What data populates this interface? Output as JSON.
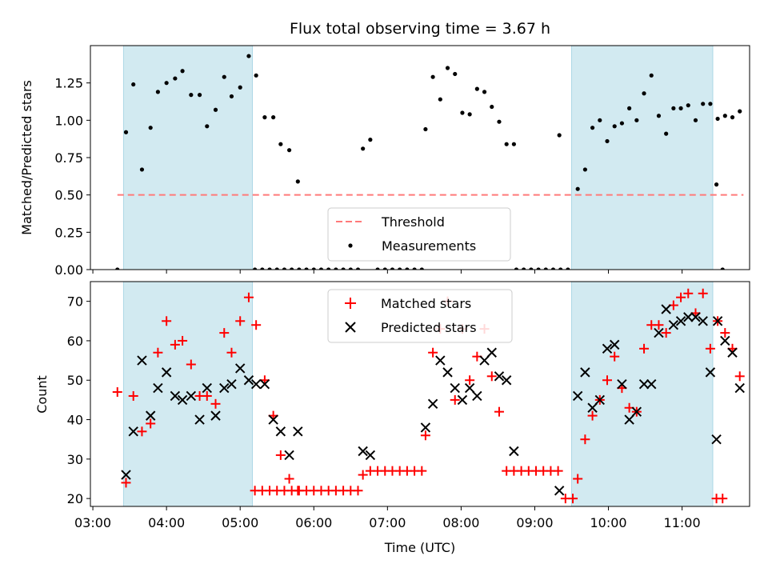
{
  "chart_data": [
    {
      "type": "scatter",
      "panel": "top",
      "title": "Flux total observing time = 3.67 h",
      "xlabel": "",
      "ylabel": "Matched/Predicted stars",
      "ylim": [
        0,
        1.5
      ],
      "yticks": [
        "0.00",
        "0.25",
        "0.50",
        "0.75",
        "1.00",
        "1.25"
      ],
      "threshold": {
        "name": "Threshold",
        "value": 0.5,
        "color": "#ff7a7a",
        "style": "dashed"
      },
      "shaded_intervals": [
        [
          "03:25",
          "05:10"
        ],
        [
          "09:30",
          "11:25"
        ]
      ],
      "shade_color": "#add8e6",
      "legend": {
        "placement": "lower-center",
        "entries": [
          "Threshold",
          "Measurements"
        ]
      },
      "series": [
        {
          "name": "Measurements",
          "marker": "dot",
          "color": "#000000",
          "points": [
            [
              "03:20",
              0
            ],
            [
              "03:27",
              0.92
            ],
            [
              "03:33",
              1.24
            ],
            [
              "03:40",
              0.67
            ],
            [
              "03:47",
              0.95
            ],
            [
              "03:53",
              1.19
            ],
            [
              "04:00",
              1.25
            ],
            [
              "04:07",
              1.28
            ],
            [
              "04:13",
              1.33
            ],
            [
              "04:20",
              1.17
            ],
            [
              "04:27",
              1.17
            ],
            [
              "04:33",
              0.96
            ],
            [
              "04:40",
              1.07
            ],
            [
              "04:47",
              1.29
            ],
            [
              "04:53",
              1.16
            ],
            [
              "05:00",
              1.22
            ],
            [
              "05:07",
              1.43
            ],
            [
              "05:13",
              1.3
            ],
            [
              "05:20",
              1.02
            ],
            [
              "05:27",
              1.02
            ],
            [
              "05:33",
              0.84
            ],
            [
              "05:40",
              0.8
            ],
            [
              "05:47",
              0.59
            ],
            [
              "05:12",
              0
            ],
            [
              "05:18",
              0
            ],
            [
              "05:24",
              0
            ],
            [
              "05:30",
              0
            ],
            [
              "05:36",
              0
            ],
            [
              "05:42",
              0
            ],
            [
              "05:48",
              0
            ],
            [
              "05:54",
              0
            ],
            [
              "06:00",
              0
            ],
            [
              "06:06",
              0
            ],
            [
              "06:12",
              0
            ],
            [
              "06:18",
              0
            ],
            [
              "06:24",
              0
            ],
            [
              "06:30",
              0
            ],
            [
              "06:36",
              0
            ],
            [
              "06:40",
              0.81
            ],
            [
              "06:46",
              0.87
            ],
            [
              "06:52",
              0
            ],
            [
              "06:58",
              0
            ],
            [
              "07:04",
              0
            ],
            [
              "07:10",
              0
            ],
            [
              "07:16",
              0
            ],
            [
              "07:22",
              0
            ],
            [
              "07:28",
              0
            ],
            [
              "07:31",
              0.94
            ],
            [
              "07:37",
              1.29
            ],
            [
              "07:43",
              1.14
            ],
            [
              "07:49",
              1.35
            ],
            [
              "07:55",
              1.31
            ],
            [
              "08:01",
              1.05
            ],
            [
              "08:07",
              1.04
            ],
            [
              "08:13",
              1.21
            ],
            [
              "08:19",
              1.19
            ],
            [
              "08:25",
              1.09
            ],
            [
              "08:31",
              0.99
            ],
            [
              "08:37",
              0.84
            ],
            [
              "08:43",
              0.84
            ],
            [
              "08:45",
              0
            ],
            [
              "08:51",
              0
            ],
            [
              "08:57",
              0
            ],
            [
              "09:03",
              0
            ],
            [
              "09:09",
              0
            ],
            [
              "09:15",
              0
            ],
            [
              "09:21",
              0
            ],
            [
              "09:20",
              0.9
            ],
            [
              "09:27",
              0
            ],
            [
              "09:35",
              0.54
            ],
            [
              "09:41",
              0.67
            ],
            [
              "09:47",
              0.95
            ],
            [
              "09:53",
              1.0
            ],
            [
              "09:59",
              0.86
            ],
            [
              "10:05",
              0.96
            ],
            [
              "10:11",
              0.98
            ],
            [
              "10:17",
              1.08
            ],
            [
              "10:23",
              1.0
            ],
            [
              "10:29",
              1.18
            ],
            [
              "10:35",
              1.3
            ],
            [
              "10:41",
              1.03
            ],
            [
              "10:47",
              0.91
            ],
            [
              "10:53",
              1.08
            ],
            [
              "10:59",
              1.08
            ],
            [
              "11:05",
              1.1
            ],
            [
              "11:11",
              1.0
            ],
            [
              "11:17",
              1.11
            ],
            [
              "11:23",
              1.11
            ],
            [
              "11:29",
              1.01
            ],
            [
              "11:35",
              1.03
            ],
            [
              "11:41",
              1.02
            ],
            [
              "11:47",
              1.06
            ],
            [
              "11:28",
              0.57
            ],
            [
              "11:33",
              0
            ]
          ]
        }
      ]
    },
    {
      "type": "scatter",
      "panel": "bottom",
      "title": "",
      "xlabel": "Time (UTC)",
      "ylabel": "Count",
      "xlim": [
        "02:58",
        "11:55"
      ],
      "ylim": [
        18,
        75
      ],
      "xticks": [
        "03:00",
        "04:00",
        "05:00",
        "06:00",
        "07:00",
        "08:00",
        "09:00",
        "10:00",
        "11:00"
      ],
      "yticks": [
        "20",
        "30",
        "40",
        "50",
        "60",
        "70"
      ],
      "shaded_intervals": [
        [
          "03:25",
          "05:10"
        ],
        [
          "09:30",
          "11:25"
        ]
      ],
      "legend": {
        "placement": "top-center",
        "entries": [
          "Matched stars",
          "Predicted stars"
        ]
      },
      "series": [
        {
          "name": "Matched stars",
          "marker": "plus",
          "color": "#ff0000",
          "points": [
            [
              "03:20",
              47
            ],
            [
              "03:27",
              24
            ],
            [
              "03:33",
              46
            ],
            [
              "03:40",
              37
            ],
            [
              "03:47",
              39
            ],
            [
              "03:53",
              57
            ],
            [
              "04:00",
              65
            ],
            [
              "04:07",
              59
            ],
            [
              "04:13",
              60
            ],
            [
              "04:20",
              54
            ],
            [
              "04:27",
              46
            ],
            [
              "04:33",
              46
            ],
            [
              "04:40",
              44
            ],
            [
              "04:47",
              62
            ],
            [
              "04:53",
              57
            ],
            [
              "05:00",
              65
            ],
            [
              "05:07",
              71
            ],
            [
              "05:13",
              64
            ],
            [
              "05:20",
              50
            ],
            [
              "05:27",
              41
            ],
            [
              "05:33",
              31
            ],
            [
              "05:40",
              25
            ],
            [
              "05:47",
              22
            ],
            [
              "05:12",
              22
            ],
            [
              "05:18",
              22
            ],
            [
              "05:24",
              22
            ],
            [
              "05:30",
              22
            ],
            [
              "05:36",
              22
            ],
            [
              "05:42",
              22
            ],
            [
              "05:48",
              22
            ],
            [
              "05:54",
              22
            ],
            [
              "06:00",
              22
            ],
            [
              "06:06",
              22
            ],
            [
              "06:12",
              22
            ],
            [
              "06:18",
              22
            ],
            [
              "06:24",
              22
            ],
            [
              "06:30",
              22
            ],
            [
              "06:36",
              22
            ],
            [
              "06:40",
              26
            ],
            [
              "06:46",
              27
            ],
            [
              "06:52",
              27
            ],
            [
              "06:58",
              27
            ],
            [
              "07:04",
              27
            ],
            [
              "07:10",
              27
            ],
            [
              "07:16",
              27
            ],
            [
              "07:22",
              27
            ],
            [
              "07:28",
              27
            ],
            [
              "07:31",
              36
            ],
            [
              "07:37",
              57
            ],
            [
              "07:43",
              63
            ],
            [
              "07:49",
              70
            ],
            [
              "07:55",
              45
            ],
            [
              "08:01",
              63
            ],
            [
              "08:07",
              50
            ],
            [
              "08:13",
              56
            ],
            [
              "08:19",
              63
            ],
            [
              "08:25",
              51
            ],
            [
              "08:31",
              42
            ],
            [
              "08:37",
              27
            ],
            [
              "08:43",
              27
            ],
            [
              "08:49",
              27
            ],
            [
              "08:55",
              27
            ],
            [
              "09:01",
              27
            ],
            [
              "09:07",
              27
            ],
            [
              "09:13",
              27
            ],
            [
              "09:19",
              27
            ],
            [
              "09:25",
              20
            ],
            [
              "09:31",
              20
            ],
            [
              "09:35",
              25
            ],
            [
              "09:41",
              35
            ],
            [
              "09:47",
              41
            ],
            [
              "09:53",
              45
            ],
            [
              "09:59",
              50
            ],
            [
              "10:05",
              56
            ],
            [
              "10:11",
              48
            ],
            [
              "10:17",
              43
            ],
            [
              "10:23",
              42
            ],
            [
              "10:29",
              58
            ],
            [
              "10:35",
              64
            ],
            [
              "10:41",
              64
            ],
            [
              "10:47",
              62
            ],
            [
              "10:53",
              69
            ],
            [
              "10:59",
              71
            ],
            [
              "11:05",
              72
            ],
            [
              "11:11",
              67
            ],
            [
              "11:17",
              72
            ],
            [
              "11:23",
              58
            ],
            [
              "11:29",
              65
            ],
            [
              "11:35",
              62
            ],
            [
              "11:41",
              58
            ],
            [
              "11:47",
              51
            ],
            [
              "11:28",
              20
            ],
            [
              "11:33",
              20
            ]
          ]
        },
        {
          "name": "Predicted stars",
          "marker": "x",
          "color": "#000000",
          "points": [
            [
              "03:27",
              26
            ],
            [
              "03:33",
              37
            ],
            [
              "03:40",
              55
            ],
            [
              "03:47",
              41
            ],
            [
              "03:53",
              48
            ],
            [
              "04:00",
              52
            ],
            [
              "04:07",
              46
            ],
            [
              "04:13",
              45
            ],
            [
              "04:20",
              46
            ],
            [
              "04:27",
              40
            ],
            [
              "04:33",
              48
            ],
            [
              "04:40",
              41
            ],
            [
              "04:47",
              48
            ],
            [
              "04:53",
              49
            ],
            [
              "05:00",
              53
            ],
            [
              "05:07",
              50
            ],
            [
              "05:13",
              49
            ],
            [
              "05:20",
              49
            ],
            [
              "05:27",
              40
            ],
            [
              "05:33",
              37
            ],
            [
              "05:40",
              31
            ],
            [
              "05:47",
              37
            ],
            [
              "06:40",
              32
            ],
            [
              "06:46",
              31
            ],
            [
              "07:31",
              38
            ],
            [
              "07:37",
              44
            ],
            [
              "07:43",
              55
            ],
            [
              "07:49",
              52
            ],
            [
              "07:55",
              48
            ],
            [
              "08:01",
              45
            ],
            [
              "08:07",
              48
            ],
            [
              "08:13",
              46
            ],
            [
              "08:19",
              55
            ],
            [
              "08:25",
              57
            ],
            [
              "08:31",
              51
            ],
            [
              "08:37",
              50
            ],
            [
              "08:43",
              32
            ],
            [
              "09:20",
              22
            ],
            [
              "09:35",
              46
            ],
            [
              "09:41",
              52
            ],
            [
              "09:47",
              43
            ],
            [
              "09:53",
              45
            ],
            [
              "09:59",
              58
            ],
            [
              "10:05",
              59
            ],
            [
              "10:11",
              49
            ],
            [
              "10:17",
              40
            ],
            [
              "10:23",
              42
            ],
            [
              "10:29",
              49
            ],
            [
              "10:35",
              49
            ],
            [
              "10:41",
              62
            ],
            [
              "10:47",
              68
            ],
            [
              "10:53",
              64
            ],
            [
              "10:59",
              65
            ],
            [
              "11:05",
              66
            ],
            [
              "11:11",
              66
            ],
            [
              "11:17",
              65
            ],
            [
              "11:23",
              52
            ],
            [
              "11:29",
              65
            ],
            [
              "11:35",
              60
            ],
            [
              "11:41",
              57
            ],
            [
              "11:47",
              48
            ],
            [
              "11:28",
              35
            ]
          ]
        }
      ]
    }
  ]
}
